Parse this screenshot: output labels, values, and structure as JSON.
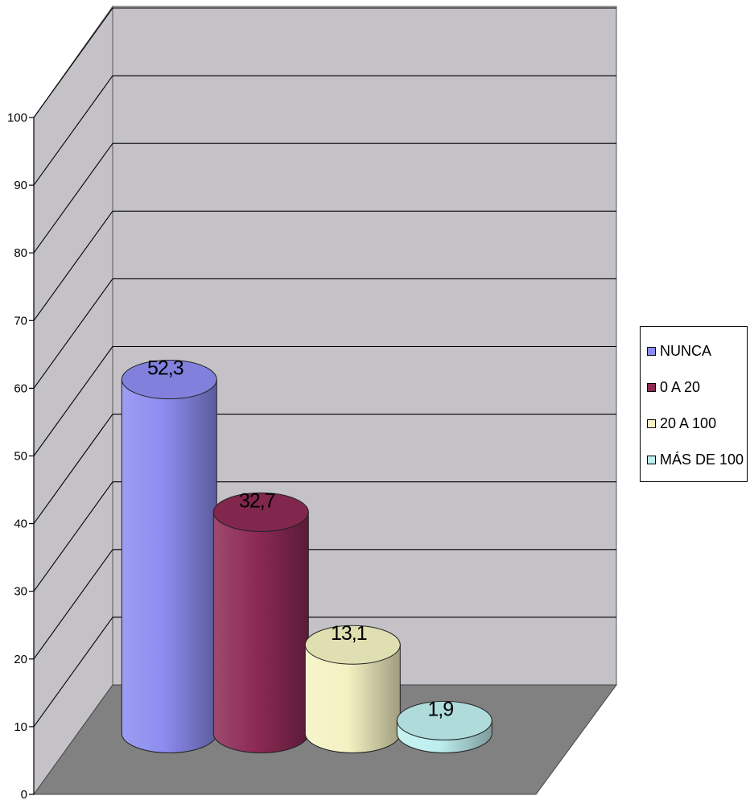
{
  "chart_data": {
    "type": "bar",
    "style": "3d-cylinder",
    "categories": [
      "NUNCA",
      "0 A 20",
      "20 A 100",
      "MÁS DE 100"
    ],
    "values": [
      52.3,
      32.7,
      13.1,
      1.9
    ],
    "value_labels": [
      "52,3",
      "32,7",
      "13,1",
      "1,9"
    ],
    "colors": [
      "#8C8CF0",
      "#8C2A55",
      "#F4F2C2",
      "#BEEEEE"
    ],
    "ylim": [
      0,
      100
    ],
    "yticks": [
      0,
      10,
      20,
      30,
      40,
      50,
      60,
      70,
      80,
      90,
      100
    ],
    "ytick_labels": [
      "0",
      "10",
      "20",
      "30",
      "40",
      "50",
      "60",
      "70",
      "80",
      "90",
      "100"
    ],
    "grid": true,
    "title": "",
    "xlabel": "",
    "ylabel": "",
    "legend": {
      "position": "right",
      "entries": [
        "NUNCA",
        "0 A 20",
        "20 A 100",
        "MÁS DE 100"
      ]
    },
    "wall_color": "#C4C2C6",
    "floor_color": "#818181"
  }
}
